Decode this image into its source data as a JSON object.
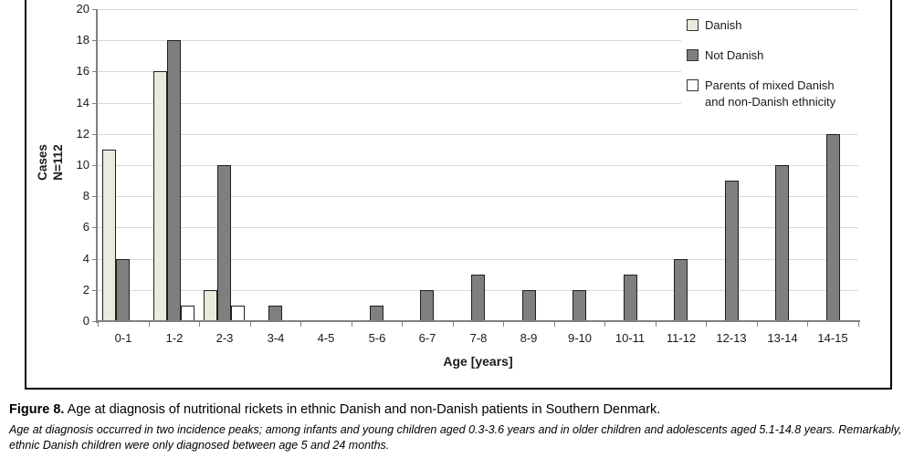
{
  "chart_data": {
    "type": "bar",
    "title": "",
    "categories": [
      "0-1",
      "1-2",
      "2-3",
      "3-4",
      "4-5",
      "5-6",
      "6-7",
      "7-8",
      "8-9",
      "9-10",
      "10-11",
      "11-12",
      "12-13",
      "13-14",
      "14-15"
    ],
    "series": [
      {
        "name": "Danish",
        "color": "#ebeadd",
        "border": "#1f1f1f",
        "values": [
          11,
          16,
          2,
          0,
          0,
          0,
          0,
          0,
          0,
          0,
          0,
          0,
          0,
          0,
          0
        ]
      },
      {
        "name": "Not Danish",
        "color": "#7f7f7f",
        "border": "#1f1f1f",
        "values": [
          4,
          18,
          10,
          1,
          0,
          1,
          2,
          3,
          2,
          2,
          3,
          4,
          9,
          10,
          12
        ]
      },
      {
        "name": "Parents of mixed Danish and non-Danish ethnicity",
        "color": "#ffffff",
        "border": "#1f1f1f",
        "values": [
          0,
          1,
          1,
          0,
          0,
          0,
          0,
          0,
          0,
          0,
          0,
          0,
          0,
          0,
          0
        ]
      }
    ],
    "legend_items": [
      {
        "label": "Danish"
      },
      {
        "label": "Not Danish"
      },
      {
        "label": "Parents of mixed Danish\nand non-Danish ethnicity"
      }
    ],
    "legend_position": "top-right",
    "grid": true,
    "ylim": [
      0,
      20
    ],
    "yticks": [
      0,
      2,
      4,
      6,
      8,
      10,
      12,
      14,
      16,
      18,
      20
    ],
    "ylabel_lines": {
      "0": "Cases",
      "1": "N=112"
    },
    "xlabel": "Age [years]",
    "colors": {
      "gridline": "#d9d9d9",
      "axis": "#808080",
      "tick_text": "#1a1a1a"
    }
  },
  "caption": {
    "figure_label": "Figure 8.",
    "title": " Age at diagnosis of nutritional rickets in ethnic Danish and non-Danish patients in Southern Denmark.",
    "note_lines": {
      "0": "Age at diagnosis occurred in two incidence peaks; among infants and young children aged 0.3-3.6 years and in older children and adolescents aged 5.1-14.8 years. Remarkably,",
      "1": "ethnic Danish children were only diagnosed between age 5 and 24 months."
    }
  }
}
